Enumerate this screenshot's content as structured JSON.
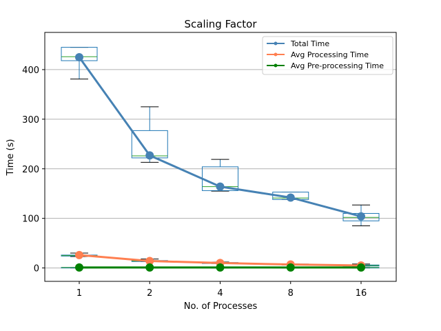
{
  "chart_data": {
    "type": "line",
    "title": "Scaling Factor",
    "xlabel": "No. of Processes",
    "ylabel": "Time (s)",
    "categories": [
      "1",
      "2",
      "4",
      "8",
      "16"
    ],
    "ylim": [
      -27,
      475
    ],
    "yticks": [
      0,
      100,
      200,
      300,
      400
    ],
    "grid": "horizontal",
    "legend_position": "top-right",
    "series": [
      {
        "name": "Total Time",
        "color": "#4682b4",
        "values": [
          425,
          227,
          164,
          142,
          104
        ]
      },
      {
        "name": "Avg Processing Time",
        "color": "#ff7f50",
        "values": [
          26,
          14,
          10,
          7,
          5
        ]
      },
      {
        "name": "Avg Pre-processing Time",
        "color": "#008000",
        "values": [
          1,
          1,
          1,
          1,
          1
        ]
      }
    ],
    "boxplots": [
      {
        "series": "Total Time",
        "box_color": "#1f77b4",
        "median_color": "#2ca02c",
        "stats": [
          {
            "whislo": 381,
            "q1": 418,
            "med": 426,
            "q3": 445,
            "whishi": 445
          },
          {
            "whislo": 213,
            "q1": 222,
            "med": 226,
            "q3": 277,
            "whishi": 325
          },
          {
            "whislo": 155,
            "q1": 156,
            "med": 164,
            "q3": 204,
            "whishi": 219
          },
          {
            "whislo": 138,
            "q1": 138,
            "med": 141,
            "q3": 153,
            "whishi": 153
          },
          {
            "whislo": 85,
            "q1": 95,
            "med": 102,
            "q3": 110,
            "whishi": 127
          }
        ]
      },
      {
        "series": "Avg Processing Time",
        "box_color": "#1f77b4",
        "median_color": "#2ca02c",
        "stats": [
          {
            "whislo": 23,
            "q1": 24,
            "med": 25,
            "q3": 26,
            "whishi": 30
          },
          {
            "whislo": 13,
            "q1": 13,
            "med": 14,
            "q3": 15,
            "whishi": 18
          },
          {
            "whislo": 9,
            "q1": 9,
            "med": 10,
            "q3": 11,
            "whishi": 12
          },
          {
            "whislo": 6,
            "q1": 7,
            "med": 7,
            "q3": 8,
            "whishi": 8
          },
          {
            "whislo": 4,
            "q1": 4,
            "med": 5,
            "q3": 6,
            "whishi": 8
          }
        ]
      },
      {
        "series": "Avg Pre-processing Time",
        "box_color": "#1f77b4",
        "median_color": "#2ca02c",
        "stats": [
          {
            "whislo": 0,
            "q1": 0,
            "med": 1,
            "q3": 1,
            "whishi": 1
          },
          {
            "whislo": 0,
            "q1": 0,
            "med": 1,
            "q3": 1,
            "whishi": 1
          },
          {
            "whislo": 0,
            "q1": 0,
            "med": 1,
            "q3": 1,
            "whishi": 1
          },
          {
            "whislo": 0,
            "q1": 0,
            "med": 1,
            "q3": 1,
            "whishi": 1
          },
          {
            "whislo": 0,
            "q1": 0,
            "med": 1,
            "q3": 1,
            "whishi": 1
          }
        ]
      }
    ]
  }
}
